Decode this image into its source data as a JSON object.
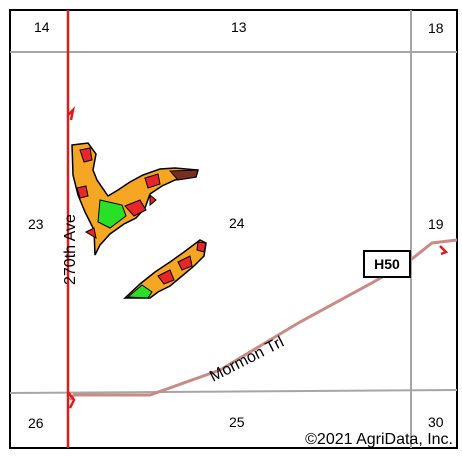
{
  "sections": {
    "top_left": "14",
    "top_center": "13",
    "top_right": "18",
    "mid_left": "23",
    "mid_center": "24",
    "mid_right": "19",
    "bottom_left": "26",
    "bottom_center": "25",
    "bottom_right": "30"
  },
  "roads": {
    "vertical_road": "270th Ave",
    "diagonal_road": "Mormon Trl",
    "highway_shield": "H50"
  },
  "copyright": "©2021 AgriData, Inc.",
  "colors": {
    "border": "#000000",
    "section_line": "#a6a6a6",
    "vertical_road": "#e01b1b",
    "trail": "#c98b85",
    "field_orange": "#f5a623",
    "field_red": "#e8252b",
    "field_green": "#27e027",
    "field_brown": "#7a2e1e"
  }
}
